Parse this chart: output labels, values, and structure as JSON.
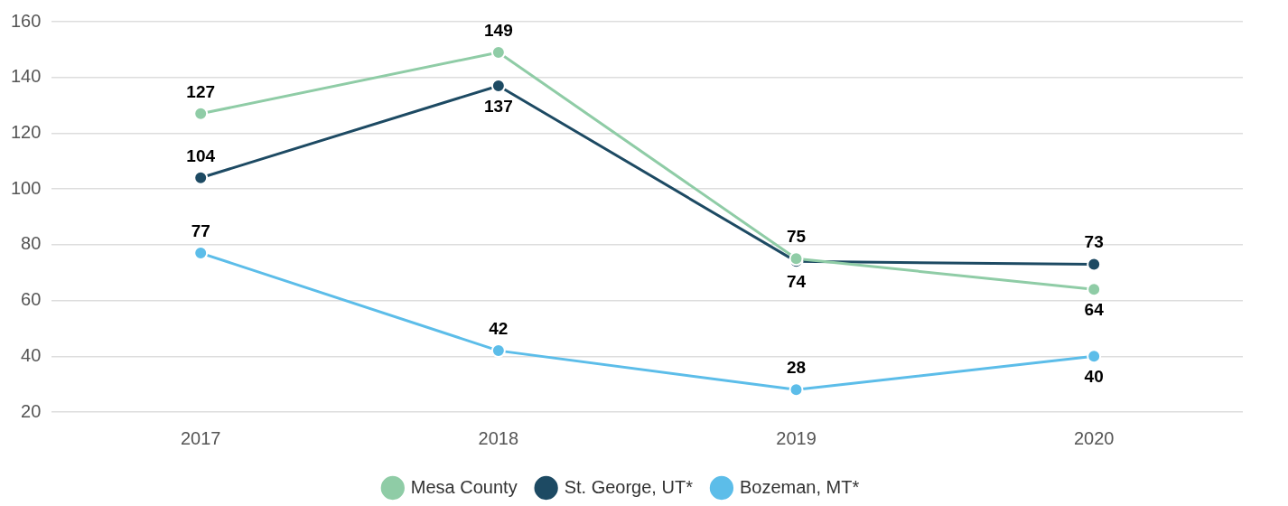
{
  "chart_data": {
    "type": "line",
    "categories": [
      "2017",
      "2018",
      "2019",
      "2020"
    ],
    "series": [
      {
        "name": "Mesa County",
        "color": "#8fcca6",
        "values": [
          127,
          149,
          75,
          64
        ]
      },
      {
        "name": "St. George, UT*",
        "color": "#1d4a63",
        "values": [
          104,
          137,
          74,
          73
        ]
      },
      {
        "name": "Bozeman, MT*",
        "color": "#5cbde9",
        "values": [
          77,
          42,
          28,
          40
        ]
      }
    ],
    "ylim": [
      20,
      160
    ],
    "yticks": [
      20,
      40,
      60,
      80,
      100,
      120,
      140,
      160
    ],
    "grid": "y",
    "legend": "bottom",
    "marker": "circle",
    "line_style": "solid",
    "data_labels": true
  }
}
